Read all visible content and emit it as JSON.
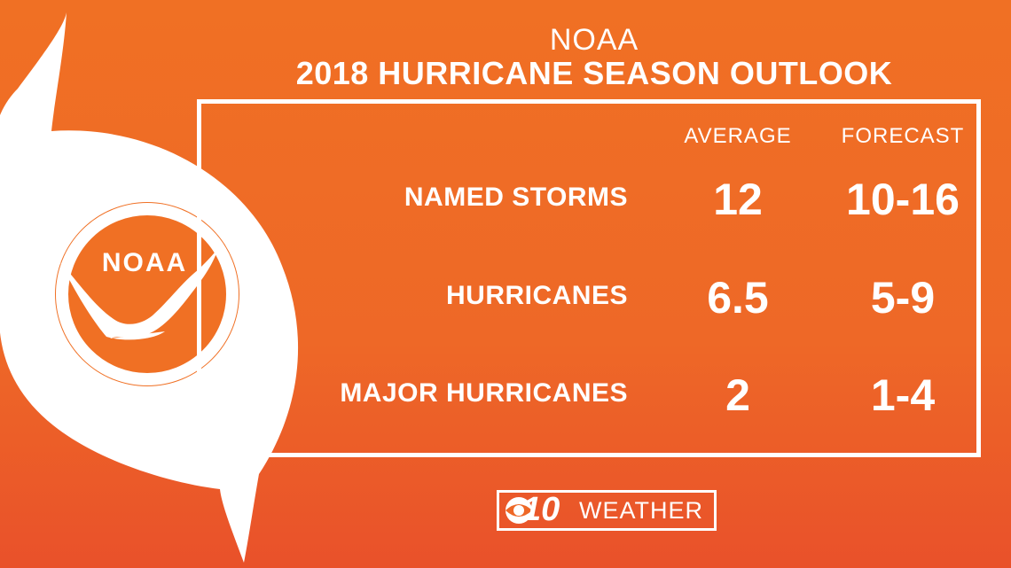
{
  "header": {
    "subtitle": "NOAA",
    "title": "2018 HURRICANE SEASON OUTLOOK"
  },
  "logo": {
    "text": "NOAA",
    "icon": "noaa-logo-icon"
  },
  "columns": {
    "average": "AVERAGE",
    "forecast": "FORECAST"
  },
  "rows": [
    {
      "label": "NAMED STORMS",
      "average": "12",
      "forecast": "10-16"
    },
    {
      "label": "HURRICANES",
      "average": "6.5",
      "forecast": "5-9"
    },
    {
      "label": "MAJOR HURRICANES",
      "average": "2",
      "forecast": "1-4"
    }
  ],
  "brand": {
    "number": "10",
    "text": "WEATHER",
    "icon": "cbs-eye-icon"
  },
  "colors": {
    "background": "#f07024",
    "foreground": "#ffffff"
  }
}
